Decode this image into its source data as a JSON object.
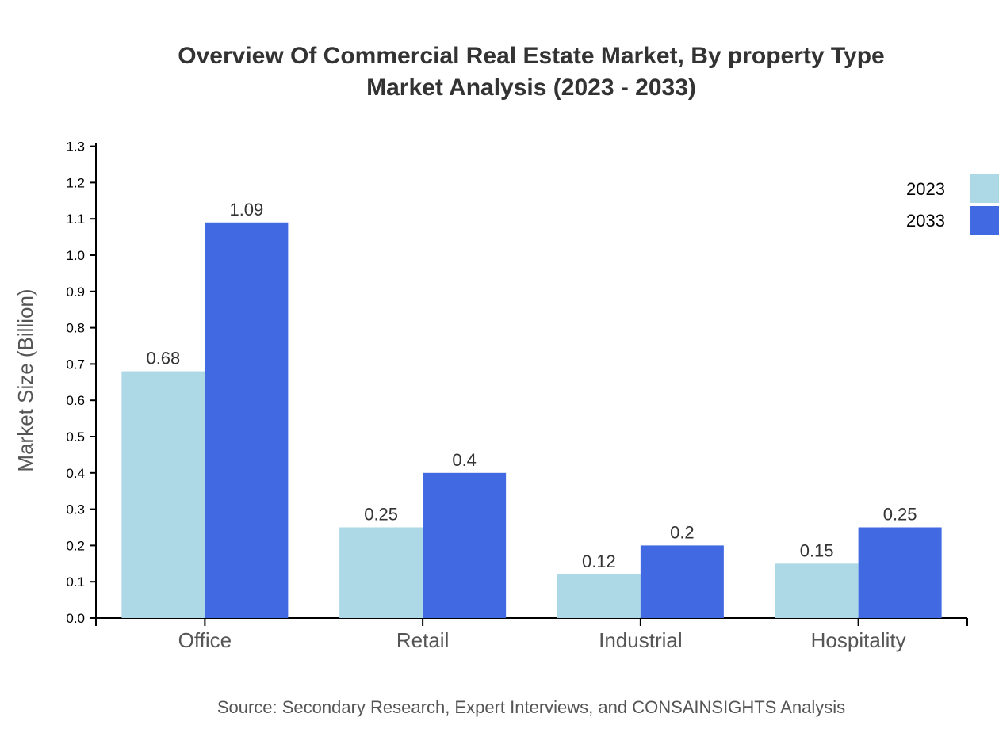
{
  "chart_data": {
    "type": "bar",
    "title": "Overview Of Commercial Real Estate Market, By property Type",
    "subtitle": "Market Analysis (2023 - 2033)",
    "xlabel": "",
    "ylabel": "Market Size (Billion)",
    "ylim": [
      0,
      1.3
    ],
    "yticks": [
      "0.0",
      "0.1",
      "0.2",
      "0.3",
      "0.4",
      "0.5",
      "0.6",
      "0.7",
      "0.8",
      "0.9",
      "1.0",
      "1.1",
      "1.2",
      "1.3"
    ],
    "categories": [
      "Office",
      "Retail",
      "Industrial",
      "Hospitality"
    ],
    "series": [
      {
        "name": "2023",
        "color": "#add8e6",
        "values": [
          0.68,
          0.25,
          0.12,
          0.15
        ]
      },
      {
        "name": "2033",
        "color": "#4169e1",
        "values": [
          1.09,
          0.4,
          0.2,
          0.25
        ]
      }
    ],
    "legend": "top-right",
    "grid": false,
    "source": "Source: Secondary Research, Expert Interviews, and CONSAINSIGHTS Analysis"
  }
}
